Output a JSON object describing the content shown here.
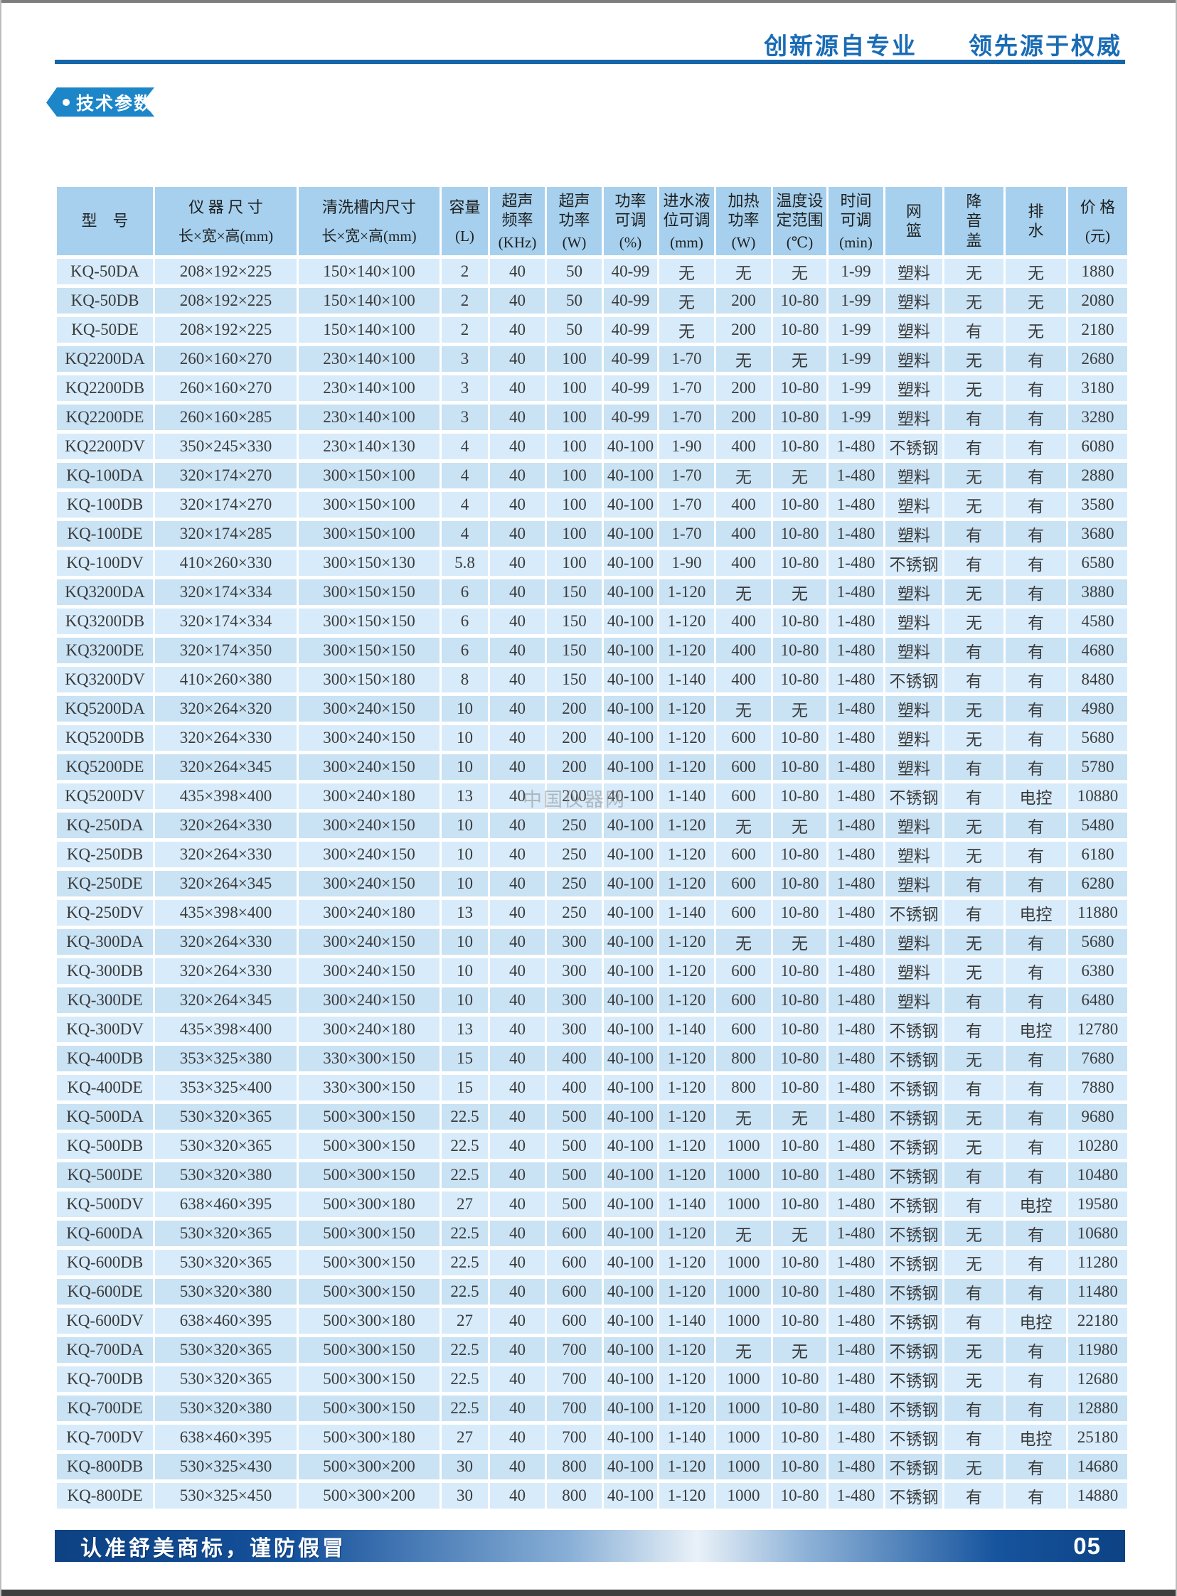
{
  "page": {
    "slogan": "创新源自专业　　领先源于权威",
    "section_title": "技术参数",
    "watermark": "中国仪器网",
    "footer_note": "认准舒美商标，谨防假冒",
    "page_number": "05",
    "colors": {
      "accent_blue": "#1a6cb5",
      "rule_blue": "#1565a8",
      "badge_blue": "#1c86c9",
      "header_bg": "#a6d0ed",
      "row_light": "#d7ebfa",
      "row_dark": "#c9e2f4",
      "footer_dark": "#0d4284"
    }
  },
  "table": {
    "columns": [
      {
        "label": "型　号",
        "unit": ""
      },
      {
        "label": "仪 器 尺 寸",
        "unit": "长×宽×高(mm)"
      },
      {
        "label": "清洗槽内尺寸",
        "unit": "长×宽×高(mm)"
      },
      {
        "label": "容量",
        "unit": "(L)"
      },
      {
        "label": "超声\n频率",
        "unit": "(KHz)"
      },
      {
        "label": "超声\n功率",
        "unit": "(W)"
      },
      {
        "label": "功率\n可调",
        "unit": "(%)"
      },
      {
        "label": "进水液\n位可调",
        "unit": "(mm)"
      },
      {
        "label": "加热\n功率",
        "unit": "(W)"
      },
      {
        "label": "温度设\n定范围",
        "unit": "(℃)"
      },
      {
        "label": "时间\n可调",
        "unit": "(min)"
      },
      {
        "label": "网\n篮",
        "unit": ""
      },
      {
        "label": "降\n音\n盖",
        "unit": ""
      },
      {
        "label": "排\n水",
        "unit": ""
      },
      {
        "label": "价 格",
        "unit": "(元)"
      }
    ],
    "rows": [
      [
        "KQ-50DA",
        "208×192×225",
        "150×140×100",
        "2",
        "40",
        "50",
        "40-99",
        "无",
        "无",
        "无",
        "1-99",
        "塑料",
        "无",
        "无",
        "1880"
      ],
      [
        "KQ-50DB",
        "208×192×225",
        "150×140×100",
        "2",
        "40",
        "50",
        "40-99",
        "无",
        "200",
        "10-80",
        "1-99",
        "塑料",
        "无",
        "无",
        "2080"
      ],
      [
        "KQ-50DE",
        "208×192×225",
        "150×140×100",
        "2",
        "40",
        "50",
        "40-99",
        "无",
        "200",
        "10-80",
        "1-99",
        "塑料",
        "有",
        "无",
        "2180"
      ],
      [
        "KQ2200DA",
        "260×160×270",
        "230×140×100",
        "3",
        "40",
        "100",
        "40-99",
        "1-70",
        "无",
        "无",
        "1-99",
        "塑料",
        "无",
        "有",
        "2680"
      ],
      [
        "KQ2200DB",
        "260×160×270",
        "230×140×100",
        "3",
        "40",
        "100",
        "40-99",
        "1-70",
        "200",
        "10-80",
        "1-99",
        "塑料",
        "无",
        "有",
        "3180"
      ],
      [
        "KQ2200DE",
        "260×160×285",
        "230×140×100",
        "3",
        "40",
        "100",
        "40-99",
        "1-70",
        "200",
        "10-80",
        "1-99",
        "塑料",
        "有",
        "有",
        "3280"
      ],
      [
        "KQ2200DV",
        "350×245×330",
        "230×140×130",
        "4",
        "40",
        "100",
        "40-100",
        "1-90",
        "400",
        "10-80",
        "1-480",
        "不锈钢",
        "有",
        "有",
        "6080"
      ],
      [
        "KQ-100DA",
        "320×174×270",
        "300×150×100",
        "4",
        "40",
        "100",
        "40-100",
        "1-70",
        "无",
        "无",
        "1-480",
        "塑料",
        "无",
        "有",
        "2880"
      ],
      [
        "KQ-100DB",
        "320×174×270",
        "300×150×100",
        "4",
        "40",
        "100",
        "40-100",
        "1-70",
        "400",
        "10-80",
        "1-480",
        "塑料",
        "无",
        "有",
        "3580"
      ],
      [
        "KQ-100DE",
        "320×174×285",
        "300×150×100",
        "4",
        "40",
        "100",
        "40-100",
        "1-70",
        "400",
        "10-80",
        "1-480",
        "塑料",
        "有",
        "有",
        "3680"
      ],
      [
        "KQ-100DV",
        "410×260×330",
        "300×150×130",
        "5.8",
        "40",
        "100",
        "40-100",
        "1-90",
        "400",
        "10-80",
        "1-480",
        "不锈钢",
        "有",
        "有",
        "6580"
      ],
      [
        "KQ3200DA",
        "320×174×334",
        "300×150×150",
        "6",
        "40",
        "150",
        "40-100",
        "1-120",
        "无",
        "无",
        "1-480",
        "塑料",
        "无",
        "有",
        "3880"
      ],
      [
        "KQ3200DB",
        "320×174×334",
        "300×150×150",
        "6",
        "40",
        "150",
        "40-100",
        "1-120",
        "400",
        "10-80",
        "1-480",
        "塑料",
        "无",
        "有",
        "4580"
      ],
      [
        "KQ3200DE",
        "320×174×350",
        "300×150×150",
        "6",
        "40",
        "150",
        "40-100",
        "1-120",
        "400",
        "10-80",
        "1-480",
        "塑料",
        "有",
        "有",
        "4680"
      ],
      [
        "KQ3200DV",
        "410×260×380",
        "300×150×180",
        "8",
        "40",
        "150",
        "40-100",
        "1-140",
        "400",
        "10-80",
        "1-480",
        "不锈钢",
        "有",
        "有",
        "8480"
      ],
      [
        "KQ5200DA",
        "320×264×320",
        "300×240×150",
        "10",
        "40",
        "200",
        "40-100",
        "1-120",
        "无",
        "无",
        "1-480",
        "塑料",
        "无",
        "有",
        "4980"
      ],
      [
        "KQ5200DB",
        "320×264×330",
        "300×240×150",
        "10",
        "40",
        "200",
        "40-100",
        "1-120",
        "600",
        "10-80",
        "1-480",
        "塑料",
        "无",
        "有",
        "5680"
      ],
      [
        "KQ5200DE",
        "320×264×345",
        "300×240×150",
        "10",
        "40",
        "200",
        "40-100",
        "1-120",
        "600",
        "10-80",
        "1-480",
        "塑料",
        "有",
        "有",
        "5780"
      ],
      [
        "KQ5200DV",
        "435×398×400",
        "300×240×180",
        "13",
        "40",
        "200",
        "40-100",
        "1-140",
        "600",
        "10-80",
        "1-480",
        "不锈钢",
        "有",
        "电控",
        "10880"
      ],
      [
        "KQ-250DA",
        "320×264×330",
        "300×240×150",
        "10",
        "40",
        "250",
        "40-100",
        "1-120",
        "无",
        "无",
        "1-480",
        "塑料",
        "无",
        "有",
        "5480"
      ],
      [
        "KQ-250DB",
        "320×264×330",
        "300×240×150",
        "10",
        "40",
        "250",
        "40-100",
        "1-120",
        "600",
        "10-80",
        "1-480",
        "塑料",
        "无",
        "有",
        "6180"
      ],
      [
        "KQ-250DE",
        "320×264×345",
        "300×240×150",
        "10",
        "40",
        "250",
        "40-100",
        "1-120",
        "600",
        "10-80",
        "1-480",
        "塑料",
        "有",
        "有",
        "6280"
      ],
      [
        "KQ-250DV",
        "435×398×400",
        "300×240×180",
        "13",
        "40",
        "250",
        "40-100",
        "1-140",
        "600",
        "10-80",
        "1-480",
        "不锈钢",
        "有",
        "电控",
        "11880"
      ],
      [
        "KQ-300DA",
        "320×264×330",
        "300×240×150",
        "10",
        "40",
        "300",
        "40-100",
        "1-120",
        "无",
        "无",
        "1-480",
        "塑料",
        "无",
        "有",
        "5680"
      ],
      [
        "KQ-300DB",
        "320×264×330",
        "300×240×150",
        "10",
        "40",
        "300",
        "40-100",
        "1-120",
        "600",
        "10-80",
        "1-480",
        "塑料",
        "无",
        "有",
        "6380"
      ],
      [
        "KQ-300DE",
        "320×264×345",
        "300×240×150",
        "10",
        "40",
        "300",
        "40-100",
        "1-120",
        "600",
        "10-80",
        "1-480",
        "塑料",
        "有",
        "有",
        "6480"
      ],
      [
        "KQ-300DV",
        "435×398×400",
        "300×240×180",
        "13",
        "40",
        "300",
        "40-100",
        "1-140",
        "600",
        "10-80",
        "1-480",
        "不锈钢",
        "有",
        "电控",
        "12780"
      ],
      [
        "KQ-400DB",
        "353×325×380",
        "330×300×150",
        "15",
        "40",
        "400",
        "40-100",
        "1-120",
        "800",
        "10-80",
        "1-480",
        "不锈钢",
        "无",
        "有",
        "7680"
      ],
      [
        "KQ-400DE",
        "353×325×400",
        "330×300×150",
        "15",
        "40",
        "400",
        "40-100",
        "1-120",
        "800",
        "10-80",
        "1-480",
        "不锈钢",
        "有",
        "有",
        "7880"
      ],
      [
        "KQ-500DA",
        "530×320×365",
        "500×300×150",
        "22.5",
        "40",
        "500",
        "40-100",
        "1-120",
        "无",
        "无",
        "1-480",
        "不锈钢",
        "无",
        "有",
        "9680"
      ],
      [
        "KQ-500DB",
        "530×320×365",
        "500×300×150",
        "22.5",
        "40",
        "500",
        "40-100",
        "1-120",
        "1000",
        "10-80",
        "1-480",
        "不锈钢",
        "无",
        "有",
        "10280"
      ],
      [
        "KQ-500DE",
        "530×320×380",
        "500×300×150",
        "22.5",
        "40",
        "500",
        "40-100",
        "1-120",
        "1000",
        "10-80",
        "1-480",
        "不锈钢",
        "有",
        "有",
        "10480"
      ],
      [
        "KQ-500DV",
        "638×460×395",
        "500×300×180",
        "27",
        "40",
        "500",
        "40-100",
        "1-140",
        "1000",
        "10-80",
        "1-480",
        "不锈钢",
        "有",
        "电控",
        "19580"
      ],
      [
        "KQ-600DA",
        "530×320×365",
        "500×300×150",
        "22.5",
        "40",
        "600",
        "40-100",
        "1-120",
        "无",
        "无",
        "1-480",
        "不锈钢",
        "无",
        "有",
        "10680"
      ],
      [
        "KQ-600DB",
        "530×320×365",
        "500×300×150",
        "22.5",
        "40",
        "600",
        "40-100",
        "1-120",
        "1000",
        "10-80",
        "1-480",
        "不锈钢",
        "无",
        "有",
        "11280"
      ],
      [
        "KQ-600DE",
        "530×320×380",
        "500×300×150",
        "22.5",
        "40",
        "600",
        "40-100",
        "1-120",
        "1000",
        "10-80",
        "1-480",
        "不锈钢",
        "有",
        "有",
        "11480"
      ],
      [
        "KQ-600DV",
        "638×460×395",
        "500×300×180",
        "27",
        "40",
        "600",
        "40-100",
        "1-140",
        "1000",
        "10-80",
        "1-480",
        "不锈钢",
        "有",
        "电控",
        "22180"
      ],
      [
        "KQ-700DA",
        "530×320×365",
        "500×300×150",
        "22.5",
        "40",
        "700",
        "40-100",
        "1-120",
        "无",
        "无",
        "1-480",
        "不锈钢",
        "无",
        "有",
        "11980"
      ],
      [
        "KQ-700DB",
        "530×320×365",
        "500×300×150",
        "22.5",
        "40",
        "700",
        "40-100",
        "1-120",
        "1000",
        "10-80",
        "1-480",
        "不锈钢",
        "无",
        "有",
        "12680"
      ],
      [
        "KQ-700DE",
        "530×320×380",
        "500×300×150",
        "22.5",
        "40",
        "700",
        "40-100",
        "1-120",
        "1000",
        "10-80",
        "1-480",
        "不锈钢",
        "有",
        "有",
        "12880"
      ],
      [
        "KQ-700DV",
        "638×460×395",
        "500×300×180",
        "27",
        "40",
        "700",
        "40-100",
        "1-140",
        "1000",
        "10-80",
        "1-480",
        "不锈钢",
        "有",
        "电控",
        "25180"
      ],
      [
        "KQ-800DB",
        "530×325×430",
        "500×300×200",
        "30",
        "40",
        "800",
        "40-100",
        "1-120",
        "1000",
        "10-80",
        "1-480",
        "不锈钢",
        "无",
        "有",
        "14680"
      ],
      [
        "KQ-800DE",
        "530×325×450",
        "500×300×200",
        "30",
        "40",
        "800",
        "40-100",
        "1-120",
        "1000",
        "10-80",
        "1-480",
        "不锈钢",
        "有",
        "有",
        "14880"
      ]
    ]
  }
}
